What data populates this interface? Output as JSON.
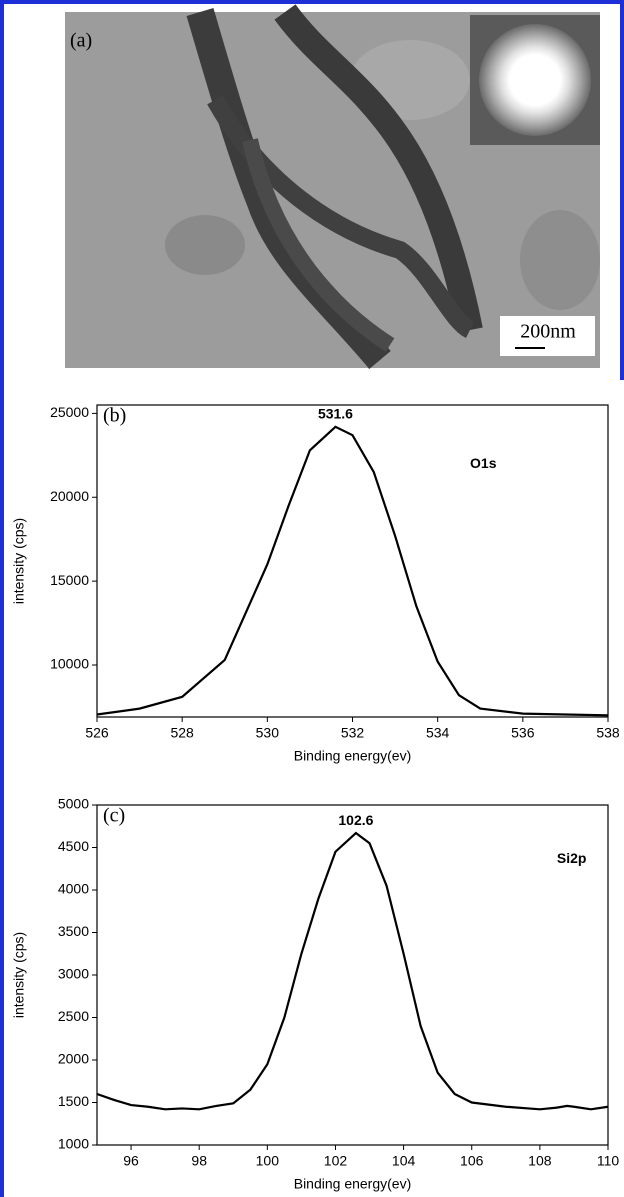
{
  "panel_a": {
    "label": "(a)",
    "scale_bar": "200nm"
  },
  "chart_data": [
    {
      "type": "line",
      "panel_label": "(b)",
      "peak_label": "531.6",
      "x_label": "Binding energy(ev)",
      "y_label": "intensity (cps)",
      "x": [
        526,
        527,
        528,
        529,
        530,
        530.5,
        531,
        531.6,
        532,
        532.5,
        533,
        533.5,
        534,
        534.5,
        535,
        536,
        537,
        538
      ],
      "series": [
        {
          "name": "O1s",
          "color": "#000000",
          "values": [
            7050,
            7400,
            8100,
            10300,
            16000,
            19500,
            22800,
            24200,
            23700,
            21500,
            17700,
            13500,
            10200,
            8200,
            7400,
            7100,
            7050,
            7000
          ]
        }
      ],
      "xlim": [
        526,
        538
      ],
      "xticks": [
        526,
        528,
        530,
        532,
        534,
        536,
        538
      ],
      "ylim": [
        6900,
        25500
      ],
      "yticks": [
        10000,
        15000,
        20000,
        25000
      ],
      "grid": false
    },
    {
      "type": "line",
      "panel_label": "(c)",
      "peak_label": "102.6",
      "x_label": "Binding energy(ev)",
      "y_label": "intensity (cps)",
      "x": [
        95,
        95.5,
        96,
        96.5,
        97,
        97.5,
        98,
        98.5,
        99,
        99.5,
        100,
        100.5,
        101,
        101.5,
        102,
        102.6,
        103,
        103.5,
        104,
        104.5,
        105,
        105.5,
        106,
        107,
        108,
        108.5,
        108.8,
        109,
        109.5,
        110
      ],
      "series": [
        {
          "name": "Si2p",
          "color": "#000000",
          "values": [
            1600,
            1530,
            1470,
            1450,
            1420,
            1430,
            1420,
            1460,
            1490,
            1650,
            1950,
            2500,
            3250,
            3900,
            4450,
            4670,
            4550,
            4050,
            3250,
            2400,
            1850,
            1600,
            1500,
            1450,
            1420,
            1440,
            1460,
            1450,
            1420,
            1450
          ]
        }
      ],
      "xlim": [
        95,
        110
      ],
      "xticks": [
        96,
        98,
        100,
        102,
        104,
        106,
        108,
        110
      ],
      "ylim": [
        1000,
        5000
      ],
      "yticks": [
        1000,
        1500,
        2000,
        2500,
        3000,
        3500,
        4000,
        4500,
        5000
      ],
      "grid": false
    }
  ]
}
